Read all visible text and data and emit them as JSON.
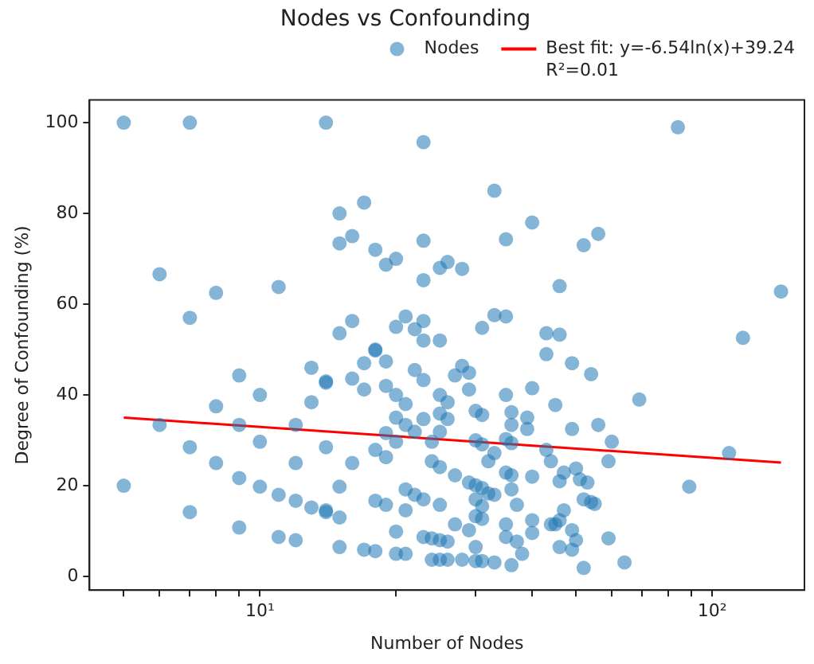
{
  "chart_data": {
    "type": "scatter",
    "title": "Nodes vs Confounding",
    "xlabel": "Number of Nodes",
    "ylabel": "Degree of Confounding (%)",
    "log": "x",
    "xlim": [
      4.2,
      160
    ],
    "ylim": [
      -3,
      105
    ],
    "xticks": [
      {
        "value": 5,
        "label": null
      },
      {
        "value": 6,
        "label": null
      },
      {
        "value": 7,
        "label": null
      },
      {
        "value": 8,
        "label": null
      },
      {
        "value": 9,
        "label": null
      },
      {
        "value": 10,
        "label": "10¹"
      },
      {
        "value": 20,
        "label": null
      },
      {
        "value": 30,
        "label": null
      },
      {
        "value": 40,
        "label": null
      },
      {
        "value": 50,
        "label": null
      },
      {
        "value": 60,
        "label": null
      },
      {
        "value": 70,
        "label": null
      },
      {
        "value": 80,
        "label": null
      },
      {
        "value": 90,
        "label": null
      },
      {
        "value": 100,
        "label": "10²"
      }
    ],
    "yticks": [
      0,
      20,
      40,
      60,
      80,
      100
    ],
    "grid": false,
    "legend": "top right",
    "marker": "circle",
    "series": [
      {
        "name": "Nodes",
        "type": "scatter",
        "color": "#1f77b4",
        "x": [
          5,
          5,
          7,
          14,
          6,
          8,
          7,
          11,
          6,
          7,
          7,
          8,
          8,
          9,
          9,
          9,
          9,
          10,
          10,
          10,
          11,
          12,
          12,
          11,
          12,
          12,
          13,
          13,
          13,
          14,
          14,
          14,
          23,
          17,
          15,
          15,
          16,
          18,
          19,
          20,
          23,
          23,
          25,
          26,
          28,
          33,
          35,
          40,
          46,
          15,
          16,
          18,
          20,
          21,
          22,
          23,
          23,
          25,
          31,
          33,
          35,
          43,
          46,
          56,
          52,
          142,
          117,
          84,
          18,
          17,
          19,
          22,
          23,
          14,
          16,
          17,
          19,
          20,
          21,
          25,
          26,
          27,
          28,
          29,
          29,
          35,
          40,
          43,
          45,
          30,
          31,
          36,
          36,
          39,
          39,
          20,
          21,
          23,
          25,
          26,
          25,
          22,
          19,
          20,
          18,
          19,
          16,
          24,
          30,
          31,
          33,
          32,
          35,
          36,
          43,
          44,
          46,
          24,
          25,
          27,
          29,
          30,
          31,
          32,
          33,
          35,
          36,
          36,
          40,
          15,
          14,
          15,
          21,
          22,
          23,
          25,
          18,
          19,
          21,
          30,
          31,
          30,
          31,
          37,
          35,
          35,
          40,
          40,
          44,
          46,
          37,
          38,
          20,
          15,
          17,
          18,
          20,
          21,
          23,
          24,
          25,
          26,
          27,
          29,
          30,
          24,
          25,
          26,
          28,
          30,
          31,
          33,
          36,
          49,
          54,
          69,
          49,
          56,
          60,
          109,
          59,
          50,
          47,
          51,
          53,
          89,
          52,
          54,
          55,
          47,
          46,
          45,
          49,
          50,
          59,
          49,
          64,
          52
        ],
        "values": [
          100,
          20,
          100,
          100,
          66.6,
          62.5,
          57,
          63.8,
          33.4,
          28.5,
          14.2,
          37.5,
          25,
          44.3,
          33.4,
          21.7,
          10.8,
          40,
          29.7,
          19.8,
          18,
          16.7,
          8,
          8.7,
          25,
          33.4,
          15.2,
          46,
          38.4,
          43,
          28.5,
          14.2,
          95.7,
          82.4,
          80,
          73.4,
          75,
          72,
          68.7,
          70,
          74,
          65.3,
          68,
          69.3,
          67.8,
          85,
          74.3,
          78,
          64,
          53.6,
          56.3,
          50,
          55,
          57.3,
          54.5,
          56.3,
          52,
          52,
          54.8,
          57.6,
          57.3,
          53.6,
          53.3,
          75.5,
          73,
          62.8,
          52.6,
          99,
          49.8,
          47,
          47.4,
          45.5,
          43.3,
          42.7,
          43.6,
          41.2,
          42,
          40,
          38,
          40,
          38.4,
          44.3,
          46.4,
          44.9,
          41.2,
          40,
          41.5,
          49,
          37.8,
          36.5,
          35.6,
          36.2,
          33.4,
          35,
          32.5,
          35,
          33.4,
          34.7,
          35.9,
          34.7,
          31.9,
          31.9,
          31.6,
          29.7,
          27.9,
          26.3,
          25,
          29.7,
          30,
          29.1,
          27.2,
          25.4,
          30.3,
          29.4,
          27.9,
          25.4,
          21,
          25.4,
          24.1,
          22.3,
          20.7,
          20.1,
          19.5,
          18.3,
          18,
          22.9,
          22.3,
          19.2,
          22,
          19.8,
          14.6,
          13,
          19.2,
          18,
          17,
          15.8,
          16.7,
          15.8,
          14.6,
          17,
          15.5,
          13.3,
          12.7,
          15.8,
          11.5,
          8.7,
          12.4,
          9.6,
          11.5,
          6.5,
          7.7,
          5,
          9.9,
          6.5,
          5.9,
          5.6,
          5,
          5,
          8.7,
          8.4,
          8,
          7.7,
          11.5,
          10.2,
          6.5,
          3.7,
          3.7,
          3.7,
          3.7,
          3.4,
          3.4,
          3.1,
          2.5,
          47,
          44.6,
          39,
          32.5,
          33.4,
          29.7,
          27.2,
          25.4,
          23.8,
          22.9,
          21.4,
          20.7,
          19.8,
          17,
          16.4,
          16,
          14.6,
          12.4,
          11.5,
          10.2,
          8,
          8.4,
          5.9,
          3.1,
          1.9
        ]
      },
      {
        "name": "Best fit: y=-6.54ln(x)+39.24\nR²=0.01",
        "type": "line",
        "color": "#ff0000",
        "marker": "none",
        "line_style": "solid",
        "x": [
          5,
          142
        ],
        "values": [
          35,
          25.1
        ]
      }
    ]
  }
}
